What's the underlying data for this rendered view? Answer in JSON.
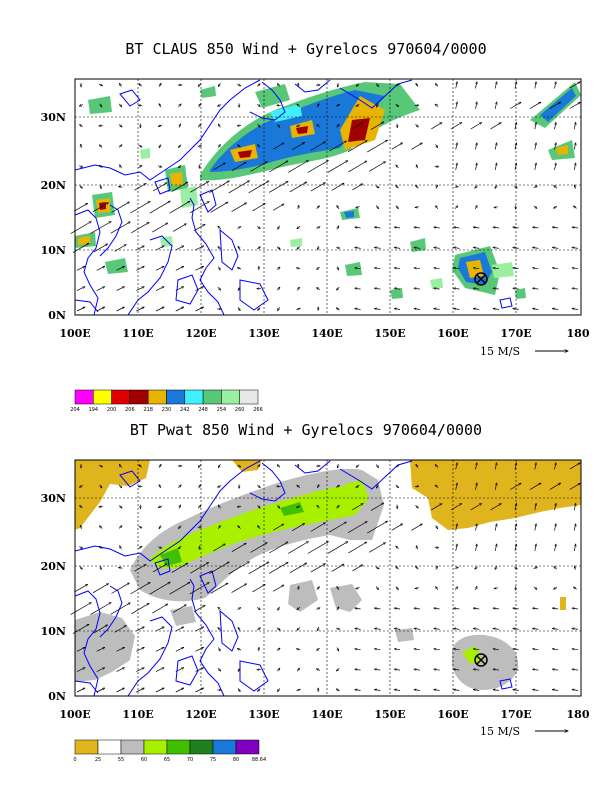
{
  "panel1": {
    "title": "BT CLAUS 850 Wind + Gyrelocs 970604/0000",
    "legend": {
      "labels": [
        "204",
        "194",
        "200",
        "206",
        "218",
        "230",
        "242",
        "248",
        "254",
        "260",
        "266"
      ],
      "colors": [
        "#ff00ff",
        "#ffff00",
        "#e00000",
        "#a00000",
        "#e8b400",
        "#1a78d8",
        "#40f0ff",
        "#58c878",
        "#9af0a0",
        "#e8e8e8"
      ]
    }
  },
  "panel2": {
    "title": "BT Pwat 850 Wind + Gyrelocs 970604/0000",
    "legend": {
      "labels": [
        "0",
        "25",
        "55",
        "60",
        "65",
        "70",
        "75",
        "80",
        "88.64"
      ],
      "colors": [
        "#e0b41c",
        "#ffffff",
        "#bdbdbd",
        "#a8f000",
        "#40c000",
        "#208020",
        "#1a78d8",
        "#8000c0"
      ]
    }
  },
  "axes": {
    "x_ticks": [
      "100E",
      "110E",
      "120E",
      "130E",
      "140E",
      "150E",
      "160E",
      "170E",
      "180"
    ],
    "y_ticks": [
      "0N",
      "10N",
      "20N",
      "30N"
    ],
    "lon_range": [
      100,
      180
    ],
    "lat_range": [
      0,
      35
    ]
  },
  "reference_vector": "15 M/S",
  "storm": {
    "lon": 164.2,
    "lat": 5.8
  },
  "colors": {
    "coast": "#0000ff",
    "frame": "#000000"
  }
}
